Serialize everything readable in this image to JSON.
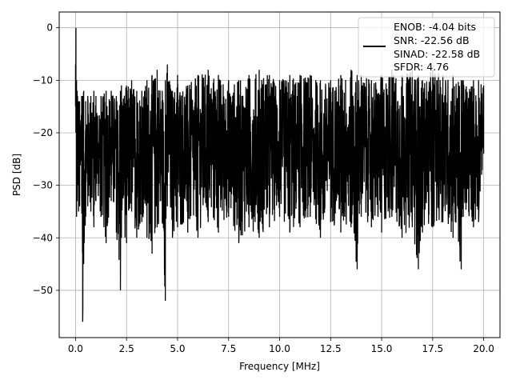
{
  "chart_data": {
    "type": "line",
    "title": "",
    "xlabel": "Frequency [MHz]",
    "ylabel": "PSD [dB]",
    "xlim": [
      -0.8,
      20.8
    ],
    "ylim": [
      -59,
      3
    ],
    "xticks": [
      0.0,
      2.5,
      5.0,
      7.5,
      10.0,
      12.5,
      15.0,
      17.5,
      20.0
    ],
    "xtick_labels": [
      "0.0",
      "2.5",
      "5.0",
      "7.5",
      "10.0",
      "12.5",
      "15.0",
      "17.5",
      "20.0"
    ],
    "yticks": [
      0,
      -10,
      -20,
      -30,
      -40,
      -50
    ],
    "ytick_labels": [
      "0",
      "−10",
      "−20",
      "−30",
      "−40",
      "−50"
    ],
    "grid": true,
    "legend_position": "top-right",
    "series_color": "#000000",
    "legend": [
      "ENOB: -4.04 bits",
      "SNR: -22.56 dB",
      "SINAD: -22.58 dB",
      "SFDR: 4.76"
    ],
    "series": [
      {
        "x": [
          0.0,
          0.02,
          0.05,
          0.08,
          0.1,
          0.15,
          0.2,
          0.3,
          0.35,
          0.4,
          0.5,
          0.6,
          0.75,
          0.9,
          1.0,
          1.25,
          1.5,
          1.75,
          2.0,
          2.2,
          2.25,
          2.5,
          2.75,
          3.0,
          3.25,
          3.5,
          3.75,
          4.0,
          4.25,
          4.4,
          4.5,
          4.75,
          5.0,
          5.5,
          6.0,
          6.5,
          7.0,
          7.5,
          8.0,
          8.5,
          9.0,
          9.5,
          10.0,
          10.5,
          11.0,
          11.5,
          12.0,
          12.5,
          13.0,
          13.5,
          13.8,
          14.0,
          14.5,
          15.0,
          15.5,
          16.0,
          16.5,
          16.8,
          17.0,
          17.5,
          18.0,
          18.5,
          18.9,
          19.0,
          19.5,
          19.75,
          20.0
        ],
        "y_max": [
          -7,
          0,
          -10,
          -12,
          -13,
          -14,
          -14,
          -13,
          -13,
          -12,
          -14,
          -13,
          -13,
          -12,
          -13,
          -13,
          -12,
          -12,
          -13,
          -12,
          -11,
          -11,
          -10,
          -12,
          -12,
          -10,
          -9,
          -8,
          -12,
          -10,
          -7,
          -12,
          -9,
          -11,
          -9,
          -8,
          -9,
          -10,
          -10,
          -9,
          -8,
          -9,
          -10,
          -9,
          -9,
          -9,
          -10,
          -10,
          -9,
          -8,
          -9,
          -9,
          -10,
          -9,
          -8,
          -9,
          -8,
          -9,
          -10,
          -8,
          -9,
          -9,
          -10,
          -10,
          -10,
          -10,
          -11
        ],
        "y_min": [
          -15,
          -20,
          -36,
          -33,
          -30,
          -35,
          -34,
          -32,
          -56,
          -45,
          -36,
          -34,
          -35,
          -38,
          -33,
          -36,
          -41,
          -33,
          -39,
          -50,
          -40,
          -41,
          -35,
          -40,
          -37,
          -40,
          -43,
          -38,
          -37,
          -52,
          -34,
          -40,
          -38,
          -39,
          -40,
          -37,
          -39,
          -36,
          -41,
          -38,
          -40,
          -38,
          -36,
          -39,
          -38,
          -36,
          -40,
          -37,
          -39,
          -38,
          -46,
          -36,
          -38,
          -39,
          -36,
          -40,
          -38,
          -46,
          -39,
          -38,
          -37,
          -40,
          -46,
          -36,
          -38,
          -37,
          -24
        ]
      }
    ]
  }
}
